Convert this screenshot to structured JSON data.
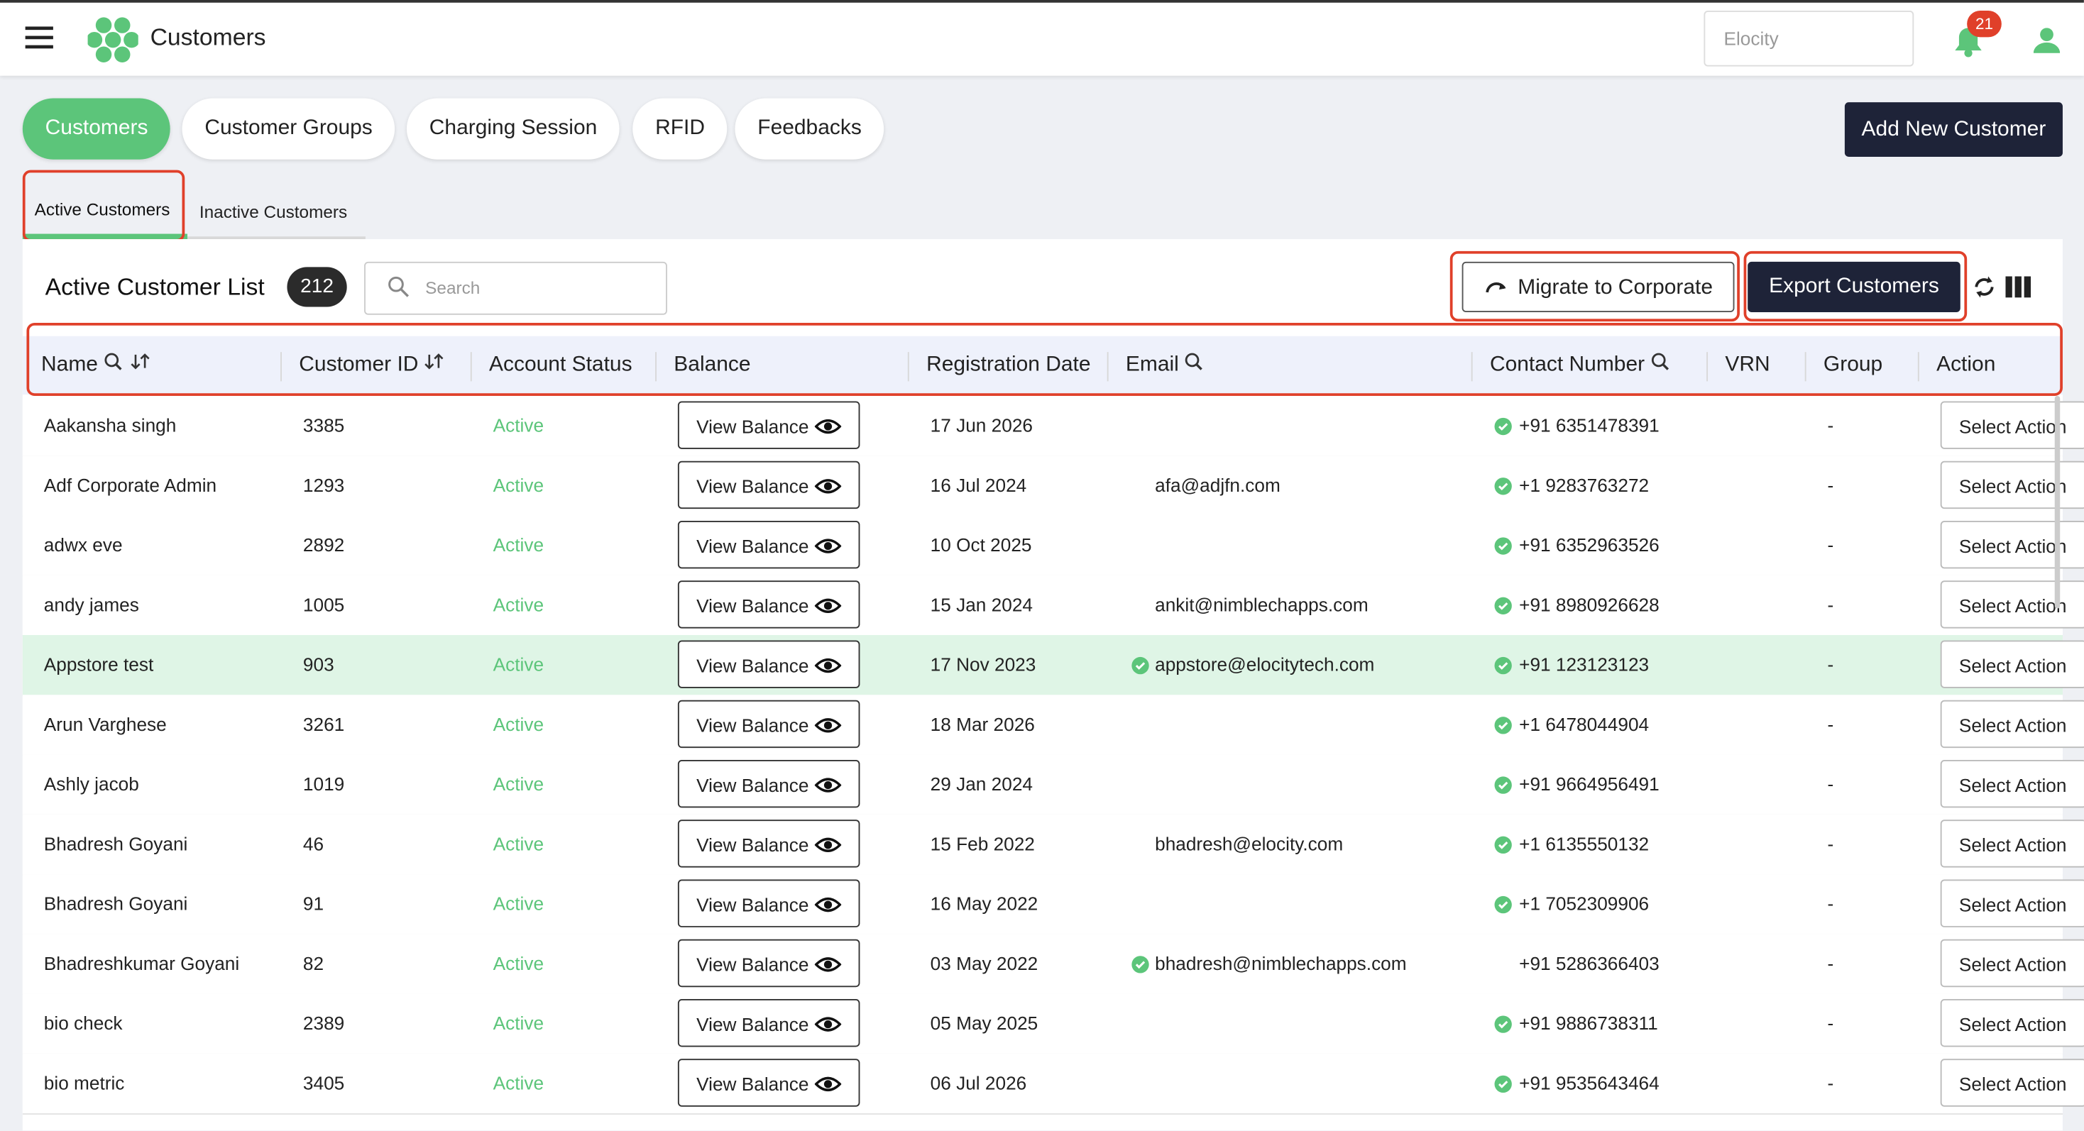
{
  "header": {
    "title": "Customers",
    "search_placeholder": "Elocity",
    "notification_count": "21"
  },
  "tabs": [
    "Customers",
    "Customer Groups",
    "Charging Session",
    "RFID",
    "Feedbacks"
  ],
  "add_button": "Add New Customer",
  "subtabs": [
    "Active Customers",
    "Inactive Customers"
  ],
  "list": {
    "title": "Active Customer List",
    "count": "212",
    "search_placeholder": "Search",
    "migrate_button": "Migrate to Corporate",
    "export_button": "Export Customers"
  },
  "table": {
    "columns": [
      {
        "label": "Name",
        "filter": true,
        "sort": true
      },
      {
        "label": "Customer ID",
        "filter": false,
        "sort": true
      },
      {
        "label": "Account Status",
        "filter": false,
        "sort": false
      },
      {
        "label": "Balance",
        "filter": false,
        "sort": false
      },
      {
        "label": "Registration Date",
        "filter": false,
        "sort": false
      },
      {
        "label": "Email",
        "filter": true,
        "sort": false
      },
      {
        "label": "Contact Number",
        "filter": true,
        "sort": false
      },
      {
        "label": "VRN",
        "filter": false,
        "sort": false
      },
      {
        "label": "Group",
        "filter": false,
        "sort": false
      },
      {
        "label": "Action",
        "filter": false,
        "sort": false
      }
    ],
    "balance_button": "View Balance",
    "action_button": "Select Action",
    "rows": [
      {
        "name": "Aakansha singh",
        "id": "3385",
        "status": "Active",
        "date": "17 Jun 2026",
        "email": "",
        "email_verified": false,
        "contact": "+91 6351478391",
        "contact_verified": true,
        "group": "-"
      },
      {
        "name": "Adf Corporate Admin",
        "id": "1293",
        "status": "Active",
        "date": "16 Jul 2024",
        "email": "afa@adjfn.com",
        "email_verified": false,
        "contact": "+1 9283763272",
        "contact_verified": true,
        "group": "-"
      },
      {
        "name": "adwx eve",
        "id": "2892",
        "status": "Active",
        "date": "10 Oct 2025",
        "email": "",
        "email_verified": false,
        "contact": "+91 6352963526",
        "contact_verified": true,
        "group": "-"
      },
      {
        "name": "andy james",
        "id": "1005",
        "status": "Active",
        "date": "15 Jan 2024",
        "email": "ankit@nimblechapps.com",
        "email_verified": false,
        "contact": "+91 8980926628",
        "contact_verified": true,
        "group": "-"
      },
      {
        "name": "Appstore test",
        "id": "903",
        "status": "Active",
        "date": "17 Nov 2023",
        "email": "appstore@elocitytech.com",
        "email_verified": true,
        "contact": "+91 123123123",
        "contact_verified": true,
        "group": "-",
        "selected": true
      },
      {
        "name": "Arun Varghese",
        "id": "3261",
        "status": "Active",
        "date": "18 Mar 2026",
        "email": "",
        "email_verified": false,
        "contact": "+1 6478044904",
        "contact_verified": true,
        "group": "-"
      },
      {
        "name": "Ashly jacob",
        "id": "1019",
        "status": "Active",
        "date": "29 Jan 2024",
        "email": "",
        "email_verified": false,
        "contact": "+91 9664956491",
        "contact_verified": true,
        "group": "-"
      },
      {
        "name": "Bhadresh Goyani",
        "id": "46",
        "status": "Active",
        "date": "15 Feb 2022",
        "email": "bhadresh@elocity.com",
        "email_verified": false,
        "contact": "+1 6135550132",
        "contact_verified": true,
        "group": "-"
      },
      {
        "name": "Bhadresh Goyani",
        "id": "91",
        "status": "Active",
        "date": "16 May 2022",
        "email": "",
        "email_verified": false,
        "contact": "+1 7052309906",
        "contact_verified": true,
        "group": "-"
      },
      {
        "name": "Bhadreshkumar Goyani",
        "id": "82",
        "status": "Active",
        "date": "03 May 2022",
        "email": "bhadresh@nimblechapps.com",
        "email_verified": true,
        "contact": "+91 5286366403",
        "contact_verified": false,
        "group": "-"
      },
      {
        "name": "bio check",
        "id": "2389",
        "status": "Active",
        "date": "05 May 2025",
        "email": "",
        "email_verified": false,
        "contact": "+91 9886738311",
        "contact_verified": true,
        "group": "-"
      },
      {
        "name": "bio metric",
        "id": "3405",
        "status": "Active",
        "date": "06 Jul 2026",
        "email": "",
        "email_verified": false,
        "contact": "+91 9535643464",
        "contact_verified": true,
        "group": "-"
      }
    ]
  }
}
